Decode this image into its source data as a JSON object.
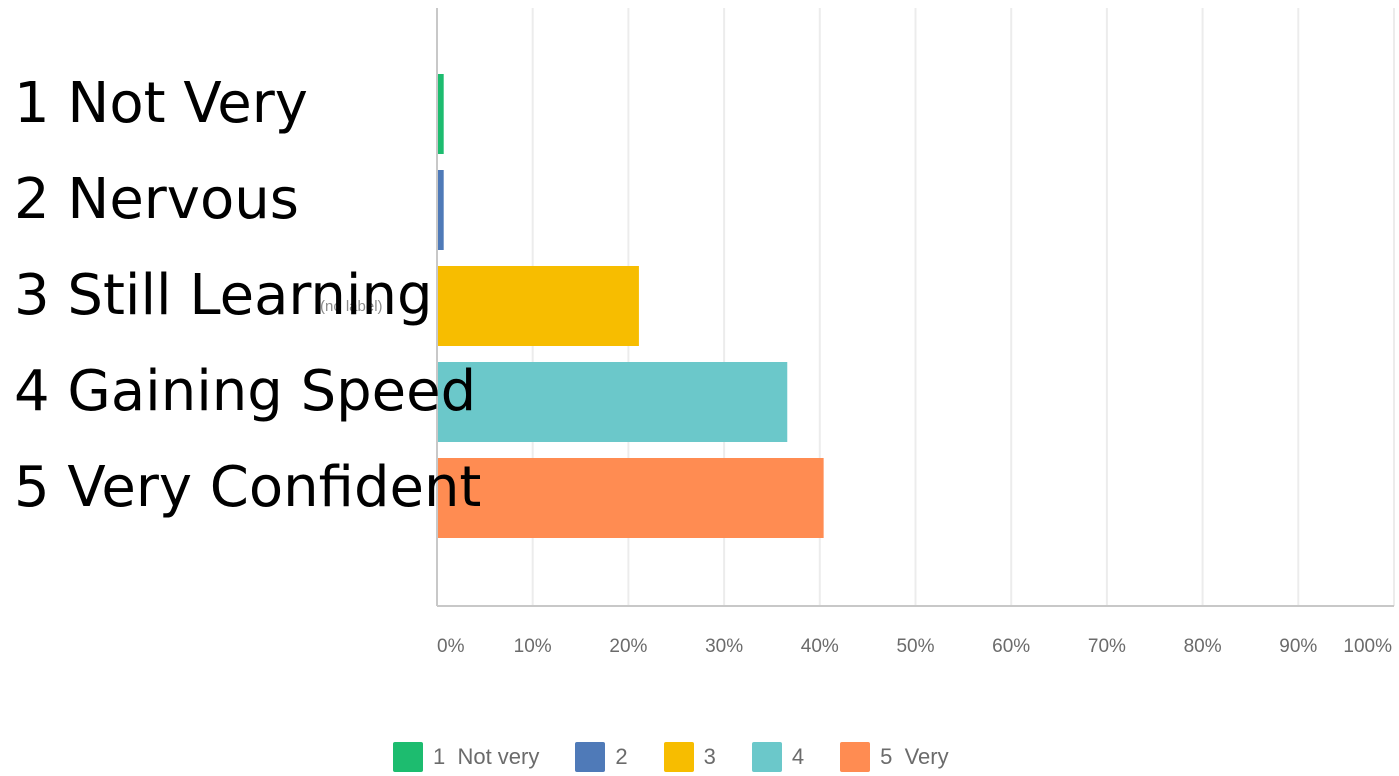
{
  "chart_data": {
    "type": "bar",
    "orientation": "horizontal",
    "categories": [
      "1 Not Very",
      "2 Nervous",
      "3 Still Learning",
      "4 Gaining Speed",
      "5 Very Confident"
    ],
    "values": [
      0.7,
      0.7,
      21.1,
      36.6,
      40.4
    ],
    "colors": [
      "#1dbc6f",
      "#4f7ab8",
      "#f7bd00",
      "#6bc8ca",
      "#ff8c52"
    ],
    "xlim": [
      0,
      100
    ],
    "xticks": [
      "0%",
      "10%",
      "20%",
      "30%",
      "40%",
      "50%",
      "60%",
      "70%",
      "80%",
      "90%",
      "100%"
    ],
    "grid": true,
    "no_label_text": "(no label)",
    "legend": {
      "placement": "bottom",
      "entries": [
        {
          "label": "1  Not very",
          "color": "#1dbc6f"
        },
        {
          "label": "2",
          "color": "#4f7ab8"
        },
        {
          "label": "3",
          "color": "#f7bd00"
        },
        {
          "label": "4",
          "color": "#6bc8ca"
        },
        {
          "label": "5  Very",
          "color": "#ff8c52"
        }
      ]
    }
  }
}
